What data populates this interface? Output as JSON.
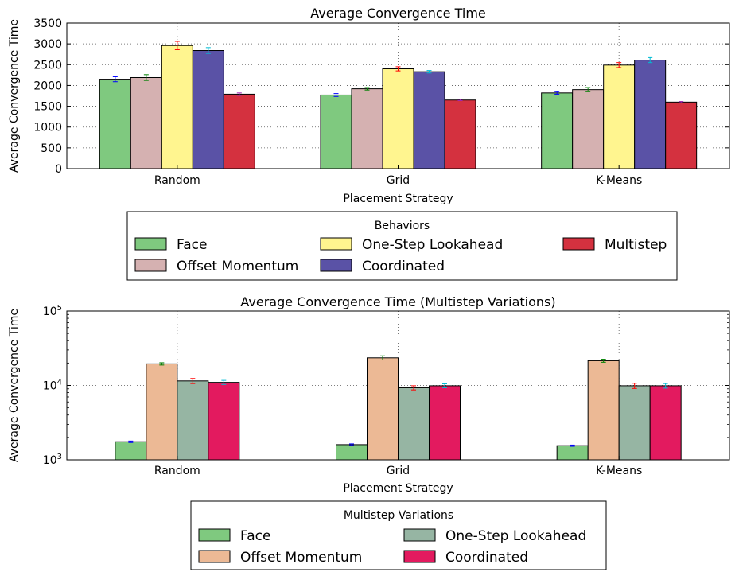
{
  "chart_data": [
    {
      "type": "bar",
      "title": "Average Convergence Time",
      "xlabel": "Placement Strategy",
      "ylabel": "Average Convergence Time",
      "ylim": [
        0,
        3500
      ],
      "yscale": "linear",
      "yticks": [
        0,
        500,
        1000,
        1500,
        2000,
        2500,
        3000,
        3500
      ],
      "ytick_labels": [
        "0",
        "500",
        "1000",
        "1500",
        "2000",
        "2500",
        "3000",
        "3500"
      ],
      "grid": true,
      "categories": [
        "Random",
        "Grid",
        "K-Means"
      ],
      "legend": {
        "title": "Behaviors",
        "placement": "below",
        "columns": [
          [
            "Face",
            "Offset Momentum"
          ],
          [
            "One-Step Lookahead",
            "Coordinated"
          ],
          [
            "Multistep"
          ]
        ]
      },
      "series": [
        {
          "name": "Face",
          "color": "#7fc97f",
          "err_color": "#0000ff",
          "values": [
            2150,
            1770,
            1820
          ],
          "errors": [
            60,
            35,
            30
          ]
        },
        {
          "name": "Offset Momentum",
          "color": "#d5b1b1",
          "err_color": "#008000",
          "values": [
            2190,
            1920,
            1900
          ],
          "errors": [
            70,
            30,
            50
          ]
        },
        {
          "name": "One-Step Lookahead",
          "color": "#fff58f",
          "err_color": "#ff0000",
          "values": [
            2960,
            2400,
            2490
          ],
          "errors": [
            100,
            50,
            60
          ]
        },
        {
          "name": "Coordinated",
          "color": "#5a52a6",
          "err_color": "#00bcd4",
          "values": [
            2840,
            2330,
            2610
          ],
          "errors": [
            70,
            30,
            60
          ]
        },
        {
          "name": "Multistep",
          "color": "#d4313f",
          "err_color": "#9c27b0",
          "values": [
            1790,
            1650,
            1600
          ],
          "errors": [
            30,
            15,
            15
          ]
        }
      ]
    },
    {
      "type": "bar",
      "title": "Average Convergence Time (Multistep Variations)",
      "xlabel": "Placement Strategy",
      "ylabel": "Average Convergence Time",
      "ylim": [
        1000,
        100000
      ],
      "yscale": "log",
      "yticks": [
        1000,
        10000,
        100000
      ],
      "ytick_labels": [
        {
          "base": "10",
          "exp": "3"
        },
        {
          "base": "10",
          "exp": "4"
        },
        {
          "base": "10",
          "exp": "5"
        }
      ],
      "grid": true,
      "categories": [
        "Random",
        "Grid",
        "K-Means"
      ],
      "legend": {
        "title": "Multistep Variations",
        "placement": "below",
        "columns": [
          [
            "Face",
            "Offset Momentum"
          ],
          [
            "One-Step Lookahead",
            "Coordinated"
          ]
        ]
      },
      "series": [
        {
          "name": "Face",
          "color": "#7fc97f",
          "err_color": "#0000ff",
          "values": [
            1750,
            1600,
            1550
          ],
          "errors": [
            40,
            40,
            30
          ]
        },
        {
          "name": "Offset Momentum",
          "color": "#ecb995",
          "err_color": "#008000",
          "values": [
            19500,
            23500,
            21500
          ],
          "errors": [
            700,
            1500,
            1000
          ]
        },
        {
          "name": "One-Step Lookahead",
          "color": "#96b5a3",
          "err_color": "#ff0000",
          "values": [
            11500,
            9300,
            9900
          ],
          "errors": [
            900,
            600,
            800
          ]
        },
        {
          "name": "Coordinated",
          "color": "#e31a5f",
          "err_color": "#00bcd4",
          "values": [
            11000,
            9900,
            9900
          ],
          "errors": [
            700,
            600,
            700
          ]
        }
      ]
    }
  ]
}
